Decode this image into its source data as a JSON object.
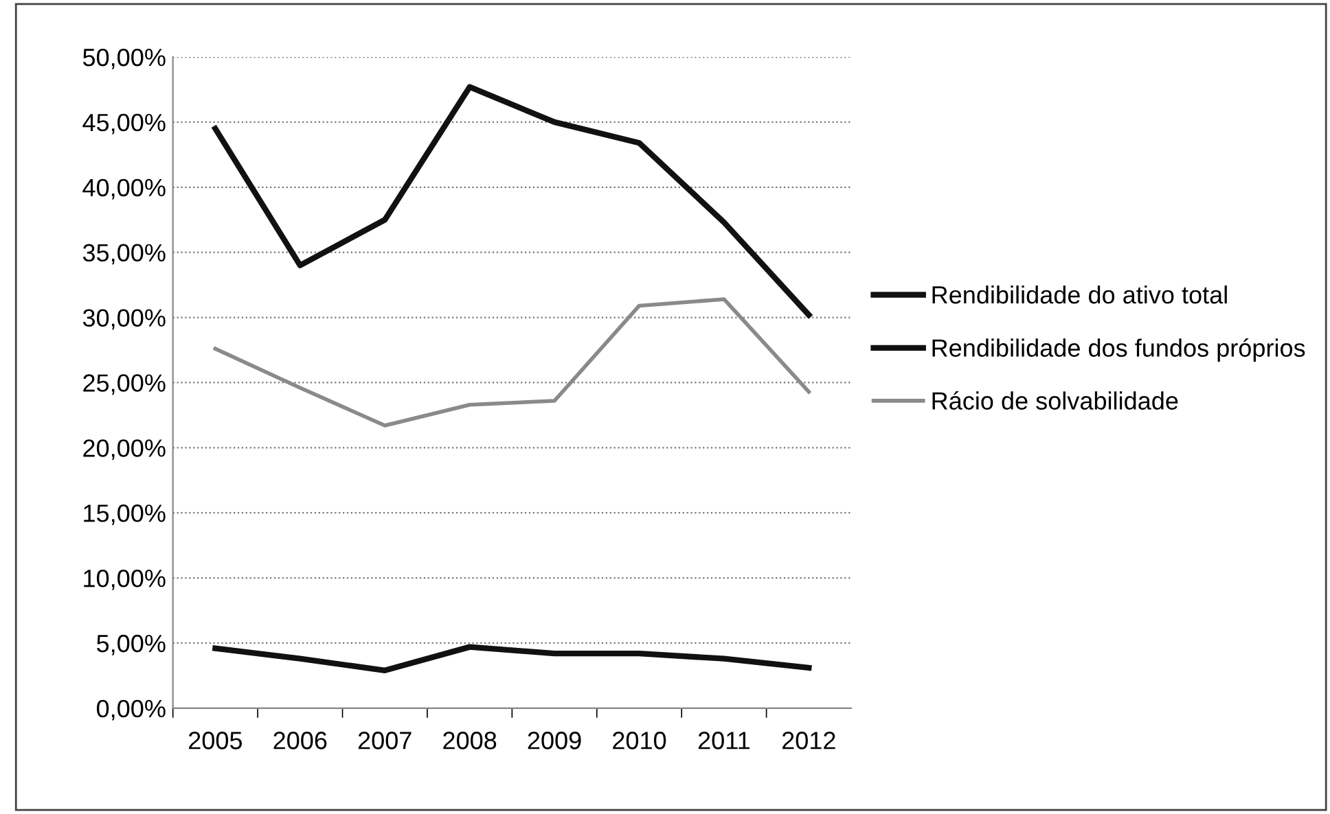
{
  "chart_data": {
    "type": "line",
    "categories": [
      "2005",
      "2006",
      "2007",
      "2008",
      "2009",
      "2010",
      "2011",
      "2012"
    ],
    "series": [
      {
        "name": "Rendibilidade do ativo total",
        "color": "#111111",
        "values": [
          4.6,
          3.8,
          2.9,
          4.7,
          4.2,
          4.2,
          3.8,
          3.1
        ]
      },
      {
        "name": "Rendibilidade dos fundos próprios",
        "color": "#111111",
        "values": [
          44.5,
          34.0,
          37.5,
          47.7,
          45.0,
          43.4,
          37.3,
          30.2
        ]
      },
      {
        "name": "Rácio de solvabilidade",
        "color": "#8a8a8a",
        "values": [
          27.6,
          24.6,
          21.7,
          23.3,
          23.6,
          30.9,
          31.4,
          24.3
        ]
      }
    ],
    "ylim": [
      0,
      50
    ],
    "yticks": [
      {
        "value": 0,
        "label": "0,00%"
      },
      {
        "value": 5,
        "label": "5,00%"
      },
      {
        "value": 10,
        "label": "10,00%"
      },
      {
        "value": 15,
        "label": "15,00%"
      },
      {
        "value": 20,
        "label": "20,00%"
      },
      {
        "value": 25,
        "label": "25,00%"
      },
      {
        "value": 30,
        "label": "30,00%"
      },
      {
        "value": 35,
        "label": "35,00%"
      },
      {
        "value": 40,
        "label": "40,00%"
      },
      {
        "value": 45,
        "label": "45,00%"
      },
      {
        "value": 50,
        "label": "50,00%"
      }
    ],
    "grid": "y",
    "legend": "right",
    "marker": "none",
    "line_style": "solid"
  }
}
